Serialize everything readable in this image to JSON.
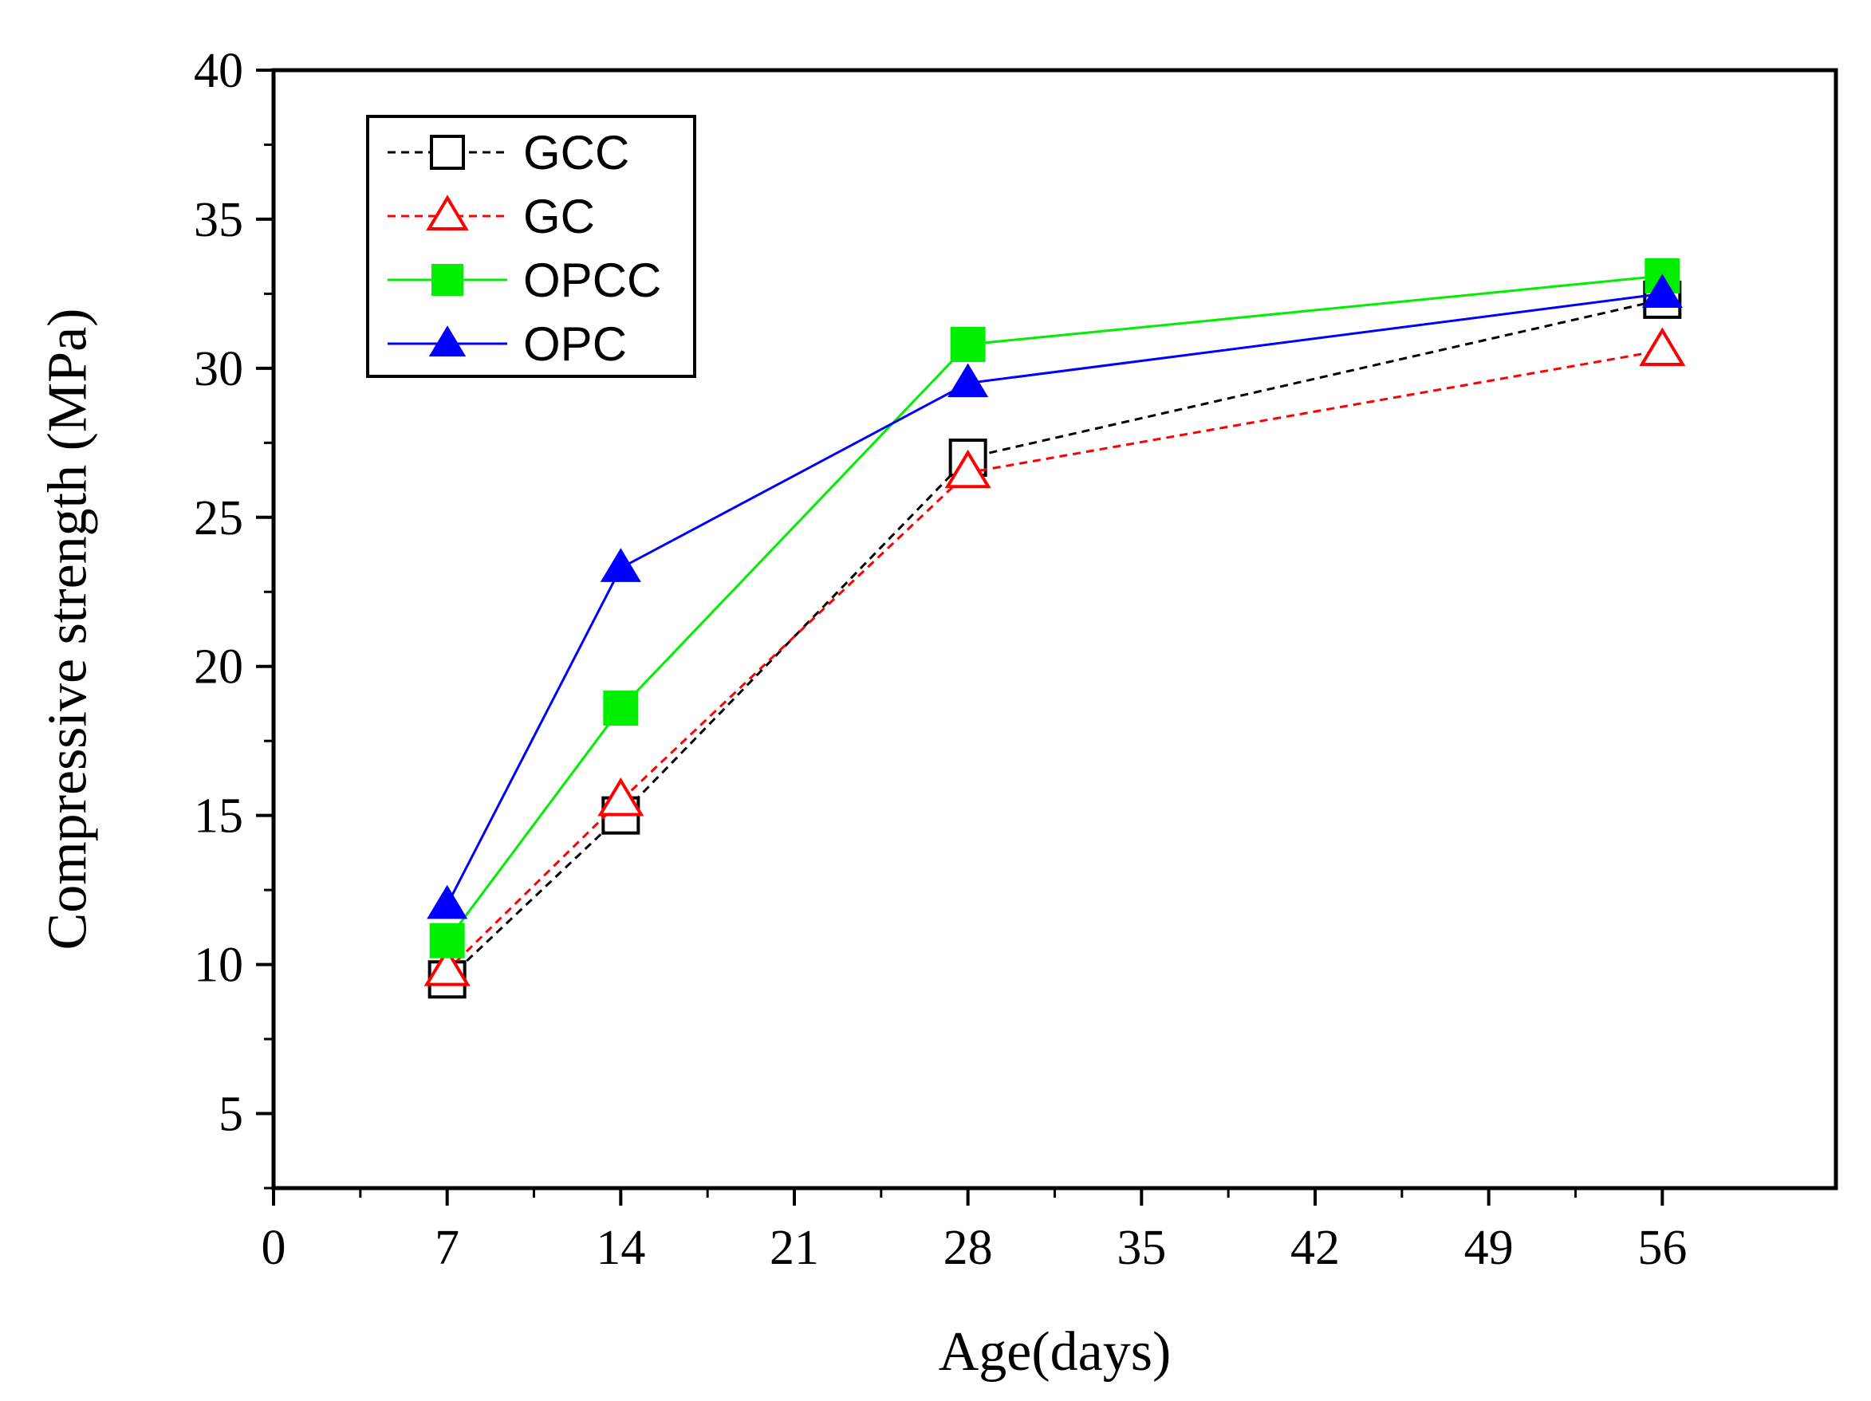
{
  "chart_data": {
    "type": "line",
    "title": "",
    "xlabel": "Age(days)",
    "ylabel": "Compressive strength (MPa)",
    "xlim": [
      0,
      63
    ],
    "ylim": [
      2.5,
      40
    ],
    "xticks": [
      0,
      7,
      14,
      21,
      28,
      35,
      42,
      49,
      56
    ],
    "yticks": [
      5,
      10,
      15,
      20,
      25,
      30,
      35,
      40
    ],
    "legend_position": "top-left",
    "grid": false,
    "series": [
      {
        "name": "GCC",
        "x": [
          7,
          14,
          28,
          56
        ],
        "values": [
          9.5,
          15.0,
          27.0,
          32.3
        ],
        "color": "#000000",
        "line": "dashed",
        "marker": "square-open"
      },
      {
        "name": "GC",
        "x": [
          7,
          14,
          28,
          56
        ],
        "values": [
          9.8,
          15.5,
          26.5,
          30.6
        ],
        "color": "#ff0000",
        "line": "dashed",
        "marker": "triangle-open"
      },
      {
        "name": "OPCC",
        "x": [
          7,
          14,
          28,
          56
        ],
        "values": [
          10.8,
          18.6,
          30.8,
          33.1
        ],
        "color": "#00ee00",
        "line": "solid",
        "marker": "square-filled"
      },
      {
        "name": "OPC",
        "x": [
          7,
          14,
          28,
          56
        ],
        "values": [
          12.0,
          23.3,
          29.5,
          32.5
        ],
        "color": "#0000ff",
        "line": "solid",
        "marker": "triangle-filled"
      }
    ]
  }
}
